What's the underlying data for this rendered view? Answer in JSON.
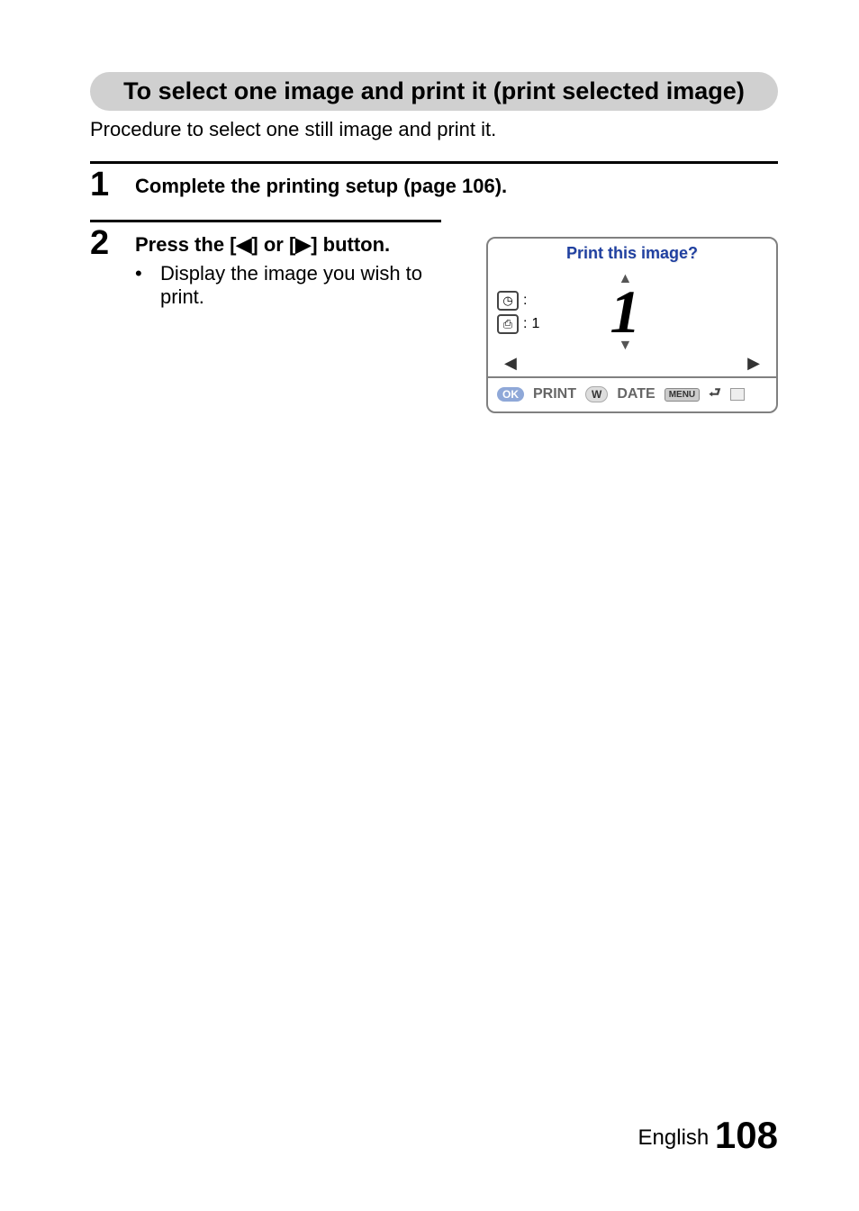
{
  "section_title": "To select one image and print it (print selected image)",
  "intro": "Procedure to select one still image and print it.",
  "step1": {
    "num": "1",
    "title": "Complete the printing setup (page 106)."
  },
  "step2": {
    "num": "2",
    "title": "Press the [◀] or [▶] button.",
    "bullet": "Display the image you wish to print."
  },
  "screen": {
    "title": "Print this image?",
    "clock_value": ":",
    "print_copies": "1",
    "arrow_up": "▲",
    "big_number": "1",
    "arrow_down": "▼",
    "arrow_left": "◀",
    "arrow_right": "▶",
    "ok_label": "OK",
    "print_label": "PRINT",
    "w_label": "W",
    "date_label": "DATE",
    "menu_label": "MENU",
    "return_symbol": "⮐"
  },
  "footer": {
    "lang": "English",
    "page": "108"
  },
  "icons": {
    "clock": "◷",
    "printer": "⎙"
  },
  "colors": {
    "header_bg": "#d0d0d0",
    "screen_title_color": "#2040a0",
    "border_gray": "#808080"
  }
}
